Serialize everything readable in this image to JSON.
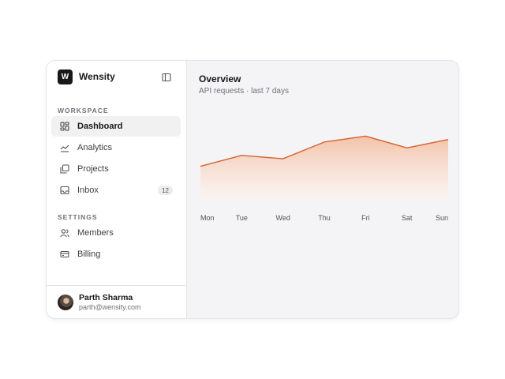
{
  "brand": {
    "logo_letter": "W",
    "name": "Wensity"
  },
  "sidebar": {
    "collapse_icon": "sidebar-toggle-icon",
    "sections": [
      {
        "label": "WORKSPACE",
        "items": [
          {
            "label": "Dashboard",
            "icon": "dashboard-icon",
            "active": true
          },
          {
            "label": "Analytics",
            "icon": "analytics-icon"
          },
          {
            "label": "Projects",
            "icon": "projects-icon"
          },
          {
            "label": "Inbox",
            "icon": "inbox-icon",
            "badge": "12"
          }
        ]
      },
      {
        "label": "SETTINGS",
        "items": [
          {
            "label": "Members",
            "icon": "members-icon"
          },
          {
            "label": "Billing",
            "icon": "billing-icon"
          }
        ]
      }
    ]
  },
  "user": {
    "name": "Parth Sharma",
    "email": "parth@wensity.com"
  },
  "main": {
    "title": "Overview",
    "subtitle": "API requests · last 7 days"
  },
  "colors": {
    "accent": "#d4622e",
    "fill_top": "#f3c2a8",
    "fill_bottom": "#fdf3ee"
  },
  "chart_data": {
    "type": "area",
    "title": "",
    "categories": [
      "Mon",
      "Tue",
      "Wed",
      "Thu",
      "Fri",
      "Sat",
      "Sun"
    ],
    "series": [
      {
        "values": [
          40,
          53,
          49,
          69,
          76,
          62,
          72
        ]
      }
    ],
    "ylim": [
      0,
      100
    ],
    "grid": false,
    "legend": "none"
  }
}
